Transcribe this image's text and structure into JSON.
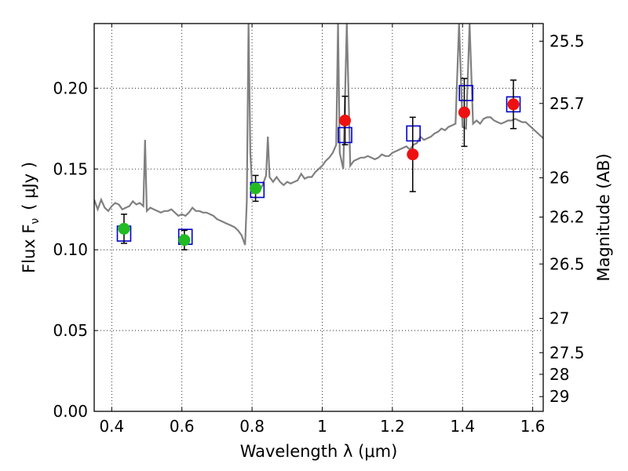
{
  "chart_data": {
    "type": "scatter",
    "title": "",
    "xlabel": "Wavelength  λ (μm)",
    "ylabel": "Flux  F",
    "ylabel_sub": "ν",
    "ylabel_unit": "( μJy )",
    "y2label": "Magnitude (AB)",
    "xlim": [
      0.35,
      1.63
    ],
    "ylim": [
      0.0,
      0.24
    ],
    "grid": "dotted",
    "x_ticks": [
      {
        "value": 0.4,
        "label": "0.4"
      },
      {
        "value": 0.6,
        "label": "0.6"
      },
      {
        "value": 0.8,
        "label": "0.8"
      },
      {
        "value": 1.0,
        "label": "1"
      },
      {
        "value": 1.2,
        "label": "1.2"
      },
      {
        "value": 1.4,
        "label": "1.4"
      },
      {
        "value": 1.6,
        "label": "1.6"
      }
    ],
    "y_ticks": [
      {
        "value": 0.0,
        "label": "0.00"
      },
      {
        "value": 0.05,
        "label": "0.05"
      },
      {
        "value": 0.1,
        "label": "0.10"
      },
      {
        "value": 0.15,
        "label": "0.15"
      },
      {
        "value": 0.2,
        "label": "0.20"
      }
    ],
    "y2_ticks": [
      {
        "value": 25.5,
        "label": "25.5"
      },
      {
        "value": 25.7,
        "label": "25.7"
      },
      {
        "value": 26,
        "label": "26"
      },
      {
        "value": 26.2,
        "label": "26.2"
      },
      {
        "value": 26.5,
        "label": "26.5"
      },
      {
        "value": 27,
        "label": "27"
      },
      {
        "value": 27.5,
        "label": "27.5"
      },
      {
        "value": 28,
        "label": "28"
      },
      {
        "value": 29,
        "label": "29"
      }
    ],
    "model_spectrum": {
      "color": "#808080",
      "x": [
        0.35,
        0.36,
        0.37,
        0.38,
        0.39,
        0.4,
        0.41,
        0.42,
        0.43,
        0.44,
        0.45,
        0.46,
        0.47,
        0.48,
        0.49,
        0.495,
        0.5,
        0.51,
        0.52,
        0.53,
        0.54,
        0.55,
        0.56,
        0.57,
        0.58,
        0.59,
        0.6,
        0.61,
        0.62,
        0.63,
        0.64,
        0.65,
        0.66,
        0.67,
        0.68,
        0.69,
        0.7,
        0.71,
        0.72,
        0.73,
        0.74,
        0.75,
        0.76,
        0.77,
        0.78,
        0.785,
        0.79,
        0.795,
        0.8,
        0.81,
        0.82,
        0.83,
        0.84,
        0.845,
        0.85,
        0.86,
        0.87,
        0.88,
        0.89,
        0.9,
        0.91,
        0.92,
        0.93,
        0.94,
        0.95,
        0.96,
        0.97,
        0.98,
        0.99,
        1.0,
        1.01,
        1.02,
        1.03,
        1.04,
        1.045,
        1.05,
        1.06,
        1.07,
        1.08,
        1.09,
        1.1,
        1.11,
        1.12,
        1.13,
        1.14,
        1.15,
        1.16,
        1.17,
        1.18,
        1.19,
        1.2,
        1.21,
        1.22,
        1.23,
        1.24,
        1.25,
        1.26,
        1.27,
        1.28,
        1.29,
        1.3,
        1.31,
        1.32,
        1.33,
        1.34,
        1.35,
        1.36,
        1.37,
        1.38,
        1.39,
        1.4,
        1.41,
        1.42,
        1.43,
        1.44,
        1.45,
        1.46,
        1.47,
        1.48,
        1.49,
        1.5,
        1.51,
        1.52,
        1.53,
        1.54,
        1.55,
        1.56,
        1.57,
        1.58,
        1.59,
        1.6,
        1.61,
        1.62,
        1.63
      ],
      "y": [
        0.131,
        0.125,
        0.131,
        0.126,
        0.124,
        0.127,
        0.129,
        0.128,
        0.125,
        0.126,
        0.127,
        0.13,
        0.128,
        0.129,
        0.127,
        0.168,
        0.124,
        0.126,
        0.125,
        0.124,
        0.123,
        0.124,
        0.124,
        0.125,
        0.123,
        0.121,
        0.122,
        0.121,
        0.123,
        0.126,
        0.124,
        0.124,
        0.123,
        0.123,
        0.122,
        0.121,
        0.119,
        0.118,
        0.117,
        0.116,
        0.115,
        0.114,
        0.112,
        0.109,
        0.103,
        0.13,
        0.24,
        0.16,
        0.14,
        0.137,
        0.136,
        0.14,
        0.146,
        0.17,
        0.145,
        0.142,
        0.145,
        0.142,
        0.14,
        0.142,
        0.141,
        0.142,
        0.143,
        0.147,
        0.144,
        0.145,
        0.145,
        0.148,
        0.15,
        0.152,
        0.155,
        0.157,
        0.16,
        0.165,
        0.24,
        0.16,
        0.15,
        0.24,
        0.152,
        0.155,
        0.156,
        0.157,
        0.157,
        0.158,
        0.157,
        0.156,
        0.157,
        0.159,
        0.158,
        0.158,
        0.16,
        0.161,
        0.162,
        0.163,
        0.164,
        0.162,
        0.165,
        0.166,
        0.17,
        0.168,
        0.169,
        0.17,
        0.172,
        0.173,
        0.175,
        0.174,
        0.176,
        0.177,
        0.178,
        0.24,
        0.176,
        0.175,
        0.24,
        0.178,
        0.18,
        0.178,
        0.181,
        0.182,
        0.182,
        0.18,
        0.179,
        0.178,
        0.179,
        0.18,
        0.18,
        0.181,
        0.18,
        0.179,
        0.179,
        0.177,
        0.175,
        0.173,
        0.171,
        0.169
      ]
    },
    "series": [
      {
        "name": "",
        "marker": "square-open",
        "color": "#0000cc",
        "x": [
          0.435,
          0.61,
          0.815,
          1.065,
          1.26,
          1.41,
          1.545
        ],
        "y": [
          0.11,
          0.108,
          0.137,
          0.171,
          0.172,
          0.197,
          0.19
        ]
      },
      {
        "name": "",
        "marker": "circle",
        "color": "#22bb22",
        "x": [
          0.435,
          0.607,
          0.81
        ],
        "y": [
          0.113,
          0.106,
          0.138
        ],
        "yerr": [
          0.009,
          0.006,
          0.008
        ]
      },
      {
        "name": "",
        "marker": "circle",
        "color": "#ee1111",
        "x": [
          1.065,
          1.258,
          1.405,
          1.545
        ],
        "y": [
          0.18,
          0.159,
          0.185,
          0.19
        ],
        "yerr": [
          0.015,
          0.023,
          0.021,
          0.015
        ]
      }
    ]
  }
}
